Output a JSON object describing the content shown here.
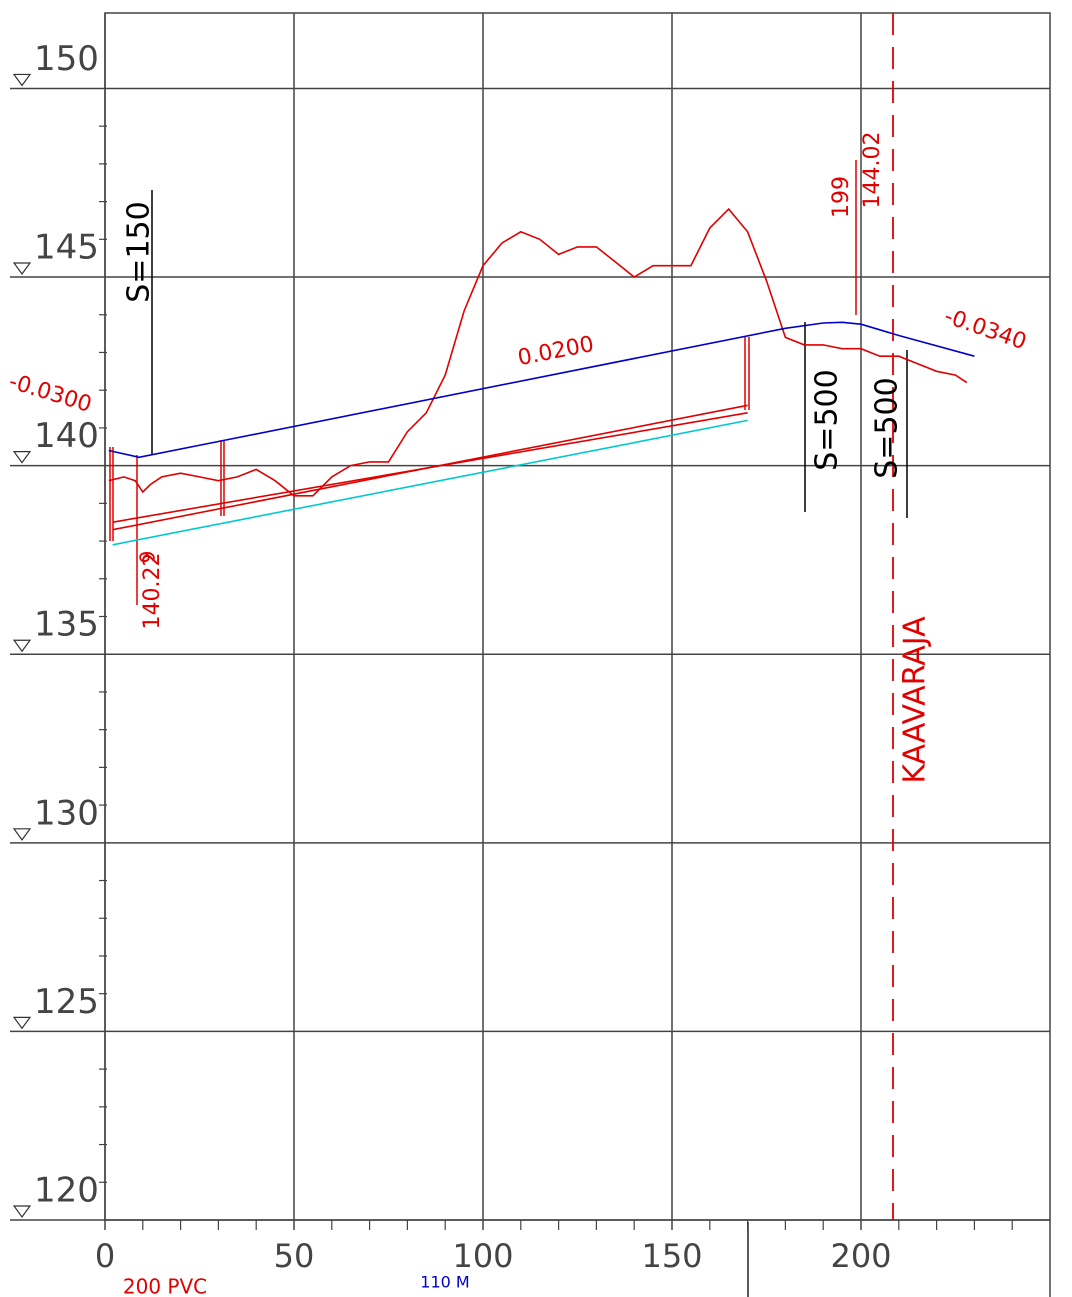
{
  "chart_data": {
    "type": "line",
    "xlim": [
      0,
      250
    ],
    "ylim": [
      120,
      152
    ],
    "xticks": [
      0,
      50,
      100,
      150,
      200
    ],
    "yticks": [
      120,
      125,
      130,
      135,
      140,
      145,
      150
    ],
    "xminorticks": [
      10,
      20,
      30,
      40,
      60,
      70,
      80,
      90,
      110,
      120,
      130,
      140,
      160,
      170,
      180,
      190,
      210,
      220,
      230,
      240
    ],
    "yminorticks": [
      121,
      122,
      123,
      124,
      126,
      127,
      128,
      129,
      131,
      132,
      133,
      134,
      136,
      137,
      138,
      139,
      141,
      142,
      143,
      144,
      146,
      147,
      148,
      149
    ],
    "grid": true,
    "series": [
      {
        "color": "#e00000",
        "x": [
          1,
          5,
          8,
          10,
          12,
          15,
          20,
          25,
          30,
          35,
          40,
          45,
          50,
          55,
          60,
          65,
          70,
          75,
          80,
          85,
          90,
          95,
          100,
          105,
          110,
          115,
          120,
          125,
          130,
          135,
          140,
          145,
          150,
          155,
          160,
          165,
          170,
          175,
          180,
          185,
          190,
          195,
          200,
          205,
          210,
          215,
          220,
          225,
          228
        ],
        "values": [
          139.6,
          139.7,
          139.6,
          139.3,
          139.5,
          139.7,
          139.8,
          139.7,
          139.6,
          139.7,
          139.9,
          139.6,
          139.2,
          139.2,
          139.7,
          140.0,
          140.1,
          140.1,
          140.9,
          141.4,
          142.4,
          144.1,
          145.3,
          145.9,
          146.2,
          146.0,
          145.6,
          145.8,
          145.8,
          145.4,
          145.0,
          145.3,
          145.3,
          145.3,
          146.3,
          146.8,
          146.2,
          144.9,
          143.4,
          143.2,
          143.2,
          143.1,
          143.1,
          142.9,
          142.9,
          142.7,
          142.5,
          142.4,
          142.2
        ]
      },
      {
        "color": "#0000c8",
        "x": [
          1,
          9,
          30,
          180,
          190,
          195,
          200,
          210,
          230
        ],
        "values": [
          140.4,
          140.22,
          140.64,
          143.64,
          143.78,
          143.8,
          143.75,
          143.45,
          142.9
        ]
      },
      {
        "color": "#e00000",
        "x": [
          2,
          170
        ],
        "values": [
          138.3,
          141.6
        ]
      },
      {
        "color": "#e00000",
        "x": [
          2,
          170
        ],
        "values": [
          138.5,
          141.4
        ]
      },
      {
        "color": "#00c8d0",
        "x": [
          2,
          170
        ],
        "values": [
          137.9,
          141.2
        ]
      }
    ],
    "annotations": [
      "S=150",
      "S=500",
      "S=500",
      "199",
      "144.02",
      "9",
      "140.22",
      "0.0200",
      "-0.0300",
      "-0.0340",
      "KAAVARAJA",
      "200 PVC",
      "110 M"
    ]
  }
}
